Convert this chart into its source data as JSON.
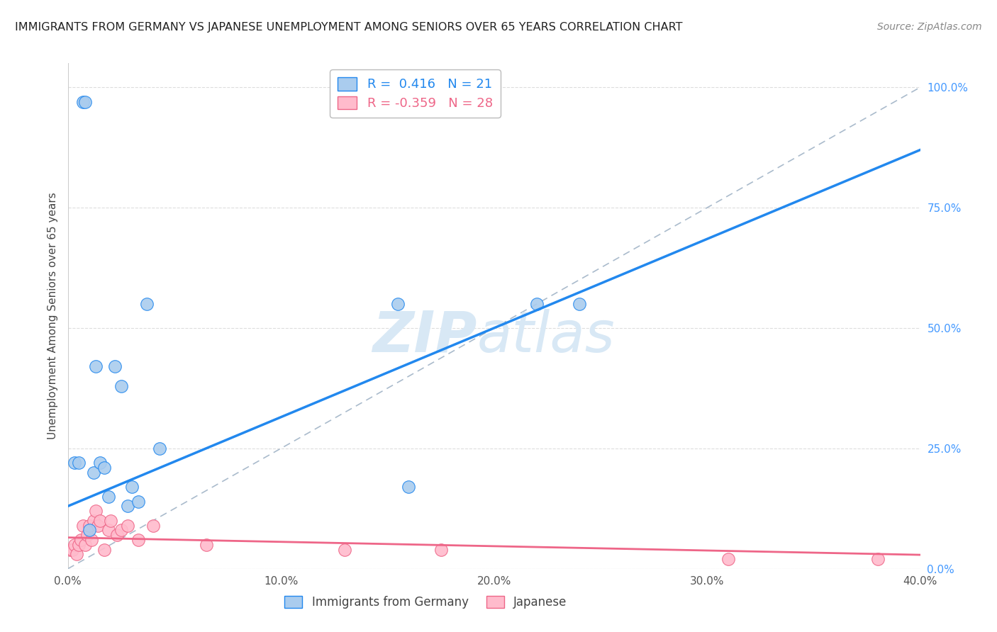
{
  "title": "IMMIGRANTS FROM GERMANY VS JAPANESE UNEMPLOYMENT AMONG SENIORS OVER 65 YEARS CORRELATION CHART",
  "source": "Source: ZipAtlas.com",
  "ylabel": "Unemployment Among Seniors over 65 years",
  "xlim": [
    0.0,
    0.4
  ],
  "ylim": [
    0.0,
    1.05
  ],
  "yticks_right": [
    0.0,
    0.25,
    0.5,
    0.75,
    1.0
  ],
  "ytick_right_labels": [
    "0.0%",
    "25.0%",
    "50.0%",
    "75.0%",
    "100.0%"
  ],
  "xticks": [
    0.0,
    0.1,
    0.2,
    0.3,
    0.4
  ],
  "xtick_labels": [
    "0.0%",
    "10.0%",
    "20.0%",
    "30.0%",
    "40.0%"
  ],
  "blue_scatter_x": [
    0.003,
    0.005,
    0.007,
    0.008,
    0.01,
    0.012,
    0.013,
    0.015,
    0.017,
    0.019,
    0.022,
    0.025,
    0.028,
    0.03,
    0.033,
    0.037,
    0.043,
    0.16,
    0.22,
    0.155,
    0.24
  ],
  "blue_scatter_y": [
    0.22,
    0.22,
    0.97,
    0.97,
    0.08,
    0.2,
    0.42,
    0.22,
    0.21,
    0.15,
    0.42,
    0.38,
    0.13,
    0.17,
    0.14,
    0.55,
    0.25,
    0.17,
    0.55,
    0.55,
    0.55
  ],
  "pink_scatter_x": [
    0.001,
    0.002,
    0.003,
    0.004,
    0.005,
    0.006,
    0.007,
    0.008,
    0.009,
    0.01,
    0.011,
    0.012,
    0.013,
    0.014,
    0.015,
    0.017,
    0.019,
    0.02,
    0.023,
    0.025,
    0.028,
    0.033,
    0.04,
    0.065,
    0.13,
    0.175,
    0.31,
    0.38
  ],
  "pink_scatter_y": [
    0.04,
    0.04,
    0.05,
    0.03,
    0.05,
    0.06,
    0.09,
    0.05,
    0.07,
    0.09,
    0.06,
    0.1,
    0.12,
    0.09,
    0.1,
    0.04,
    0.08,
    0.1,
    0.07,
    0.08,
    0.09,
    0.06,
    0.09,
    0.05,
    0.04,
    0.04,
    0.02,
    0.02
  ],
  "blue_line_intercept": 0.13,
  "blue_line_slope": 1.85,
  "pink_line_intercept": 0.065,
  "pink_line_slope": -0.09,
  "blue_R": 0.416,
  "blue_N": 21,
  "pink_R": -0.359,
  "pink_N": 28,
  "blue_line_color": "#2288ee",
  "pink_line_color": "#ee6688",
  "blue_scatter_facecolor": "#aaccee",
  "pink_scatter_facecolor": "#ffbbcc",
  "diag_line_color": "#aabbcc",
  "grid_color": "#dddddd",
  "title_color": "#222222",
  "right_axis_color": "#4499ff",
  "watermark_color": "#d8e8f5"
}
